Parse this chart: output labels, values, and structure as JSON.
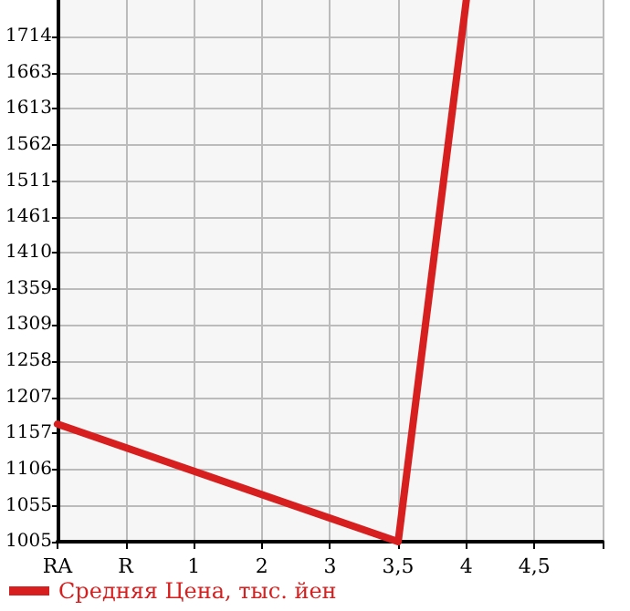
{
  "chart_data": {
    "type": "line",
    "categories": [
      "RA",
      "R",
      "1",
      "2",
      "3",
      "3,5",
      "4",
      "4,5",
      null
    ],
    "series": [
      {
        "name": "Средняя Цена, тыс. йен",
        "color": "#d71f1f",
        "values": [
          1170,
          null,
          null,
          null,
          null,
          1005,
          1765,
          null,
          null
        ]
      }
    ],
    "ylim": [
      1005,
      1765
    ],
    "yticks": [
      1005,
      1055,
      1106,
      1157,
      1207,
      1258,
      1309,
      1359,
      1410,
      1461,
      1511,
      1562,
      1613,
      1663,
      1714
    ],
    "grid": true,
    "legend": "bottom left",
    "marker": "none",
    "line_style": "solid"
  }
}
